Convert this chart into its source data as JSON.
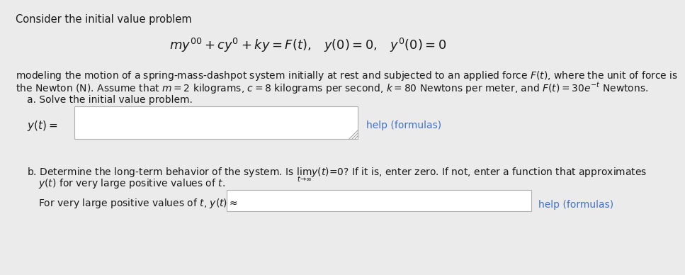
{
  "bg_color": "#ebebeb",
  "title_text": "Consider the initial value problem",
  "main_eq": "$my'' + cy' + ky = F(t),\\;\\;\\; y(0) = 0,\\;\\;\\; y'(0) = 0$",
  "body_line1": "modeling the motion of a spring-mass-dashpot system initially at rest and subjected to an applied force $F(t)$, where the unit of force is",
  "body_line2": "the Newton (N). Assume that $m = 2$ kilograms, $c = 8$ kilograms per second, $k = 80$ Newtons per meter, and $F(t) = 30e^{-t}$ Newtons.",
  "part_a_label": "a. Solve the initial value problem.",
  "part_a_lhs": "$y(t) =$",
  "help_a": "help (formulas)",
  "part_b_line1": "b. Determine the long-term behavior of the system. Is $\\lim_{t \\to \\infty} y(t) = 0$? If it is, enter zero. If not, enter a function that approximates",
  "part_b_line2": "$y(t)$ for very large positive values of $t$.",
  "part_b_lhs": "For very large positive values of $t$, $y(t) \\approx$",
  "help_b": "help (formulas)",
  "link_color": "#4472c4",
  "text_color": "#1a1a1a",
  "box_fill": "#ffffff",
  "box_edge": "#b0b0b0",
  "title_fs": 10.5,
  "eq_fs": 13,
  "body_fs": 10,
  "label_fs": 10,
  "lhs_fs": 11,
  "help_fs": 10
}
